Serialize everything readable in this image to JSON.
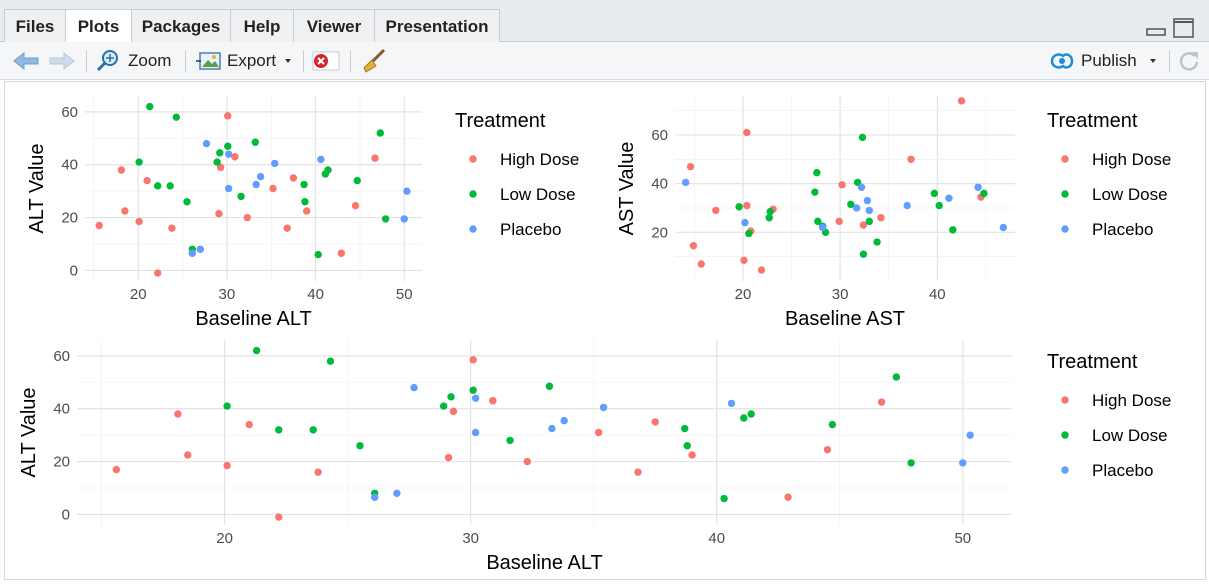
{
  "tabs": [
    {
      "label": "Files",
      "active": false
    },
    {
      "label": "Plots",
      "active": true
    },
    {
      "label": "Packages",
      "active": false
    },
    {
      "label": "Help",
      "active": false
    },
    {
      "label": "Viewer",
      "active": false
    },
    {
      "label": "Presentation",
      "active": false
    }
  ],
  "toolbar": {
    "zoom_label": "Zoom",
    "export_label": "Export",
    "publish_label": "Publish"
  },
  "colors": {
    "high_dose": "#F8766D",
    "low_dose": "#00BA38",
    "placebo": "#619CFF",
    "accent": "#1a8fd6"
  },
  "chart_data": [
    {
      "type": "scatter",
      "xlabel": "Baseline ALT",
      "ylabel": "ALT Value",
      "xlim": [
        14,
        52
      ],
      "ylim": [
        -4,
        66
      ],
      "xticks": [
        20,
        30,
        40,
        50
      ],
      "yticks": [
        0,
        20,
        40,
        60
      ],
      "legend_title": "Treatment",
      "legend": [
        "High Dose",
        "Low Dose",
        "Placebo"
      ],
      "series": [
        {
          "name": "High Dose",
          "points": [
            [
              15.6,
              17
            ],
            [
              18.1,
              38
            ],
            [
              18.5,
              22.5
            ],
            [
              20.1,
              18.5
            ],
            [
              21,
              34
            ],
            [
              22.2,
              -1
            ],
            [
              23.8,
              16
            ],
            [
              29.1,
              21.5
            ],
            [
              29.3,
              39
            ],
            [
              30.9,
              43
            ],
            [
              32.3,
              20
            ],
            [
              35.2,
              31
            ],
            [
              36.8,
              16
            ],
            [
              37.5,
              35
            ],
            [
              39,
              22.5
            ],
            [
              42.9,
              6.5
            ],
            [
              44.5,
              24.5
            ],
            [
              46.7,
              42.5
            ],
            [
              30.1,
              58.5
            ],
            [
              30.9,
              43
            ]
          ]
        },
        {
          "name": "Low Dose",
          "points": [
            [
              20.1,
              41
            ],
            [
              21.3,
              62
            ],
            [
              22.2,
              32
            ],
            [
              23.6,
              32
            ],
            [
              24.3,
              58
            ],
            [
              25.5,
              26
            ],
            [
              26.1,
              8
            ],
            [
              28.9,
              41
            ],
            [
              29.2,
              44.5
            ],
            [
              30.1,
              47
            ],
            [
              31.6,
              28
            ],
            [
              33.2,
              48.5
            ],
            [
              38.7,
              32.5
            ],
            [
              38.8,
              26
            ],
            [
              40.3,
              6
            ],
            [
              41.1,
              36.5
            ],
            [
              41.4,
              38
            ],
            [
              44.7,
              34
            ],
            [
              47.3,
              52
            ],
            [
              47.9,
              19.5
            ]
          ]
        },
        {
          "name": "Placebo",
          "points": [
            [
              26.1,
              6.5
            ],
            [
              27,
              8
            ],
            [
              27.7,
              48
            ],
            [
              30.2,
              44
            ],
            [
              30.2,
              31
            ],
            [
              33.3,
              32.5
            ],
            [
              33.8,
              35.5
            ],
            [
              35.4,
              40.5
            ],
            [
              40.6,
              42
            ],
            [
              50,
              19.5
            ],
            [
              50.3,
              30
            ]
          ]
        }
      ]
    },
    {
      "type": "scatter",
      "xlabel": "Baseline AST",
      "ylabel": "AST Value",
      "xlim": [
        13,
        48
      ],
      "ylim": [
        0,
        76
      ],
      "xticks": [
        20,
        30,
        40
      ],
      "yticks": [
        20,
        40,
        60
      ],
      "legend_title": "Treatment",
      "legend": [
        "High Dose",
        "Low Dose",
        "Placebo"
      ],
      "series": [
        {
          "name": "High Dose",
          "points": [
            [
              14.6,
              47
            ],
            [
              14.9,
              14.5
            ],
            [
              15.7,
              7
            ],
            [
              17.2,
              29
            ],
            [
              20.1,
              8.5
            ],
            [
              20.4,
              31
            ],
            [
              20.4,
              61
            ],
            [
              20.8,
              20.5
            ],
            [
              21.9,
              4.5
            ],
            [
              23.1,
              29.5
            ],
            [
              29.9,
              24.5
            ],
            [
              30.2,
              39.5
            ],
            [
              32.4,
              23
            ],
            [
              34.2,
              26
            ],
            [
              37.3,
              50
            ],
            [
              42.5,
              74
            ],
            [
              44.5,
              34.5
            ]
          ]
        },
        {
          "name": "Low Dose",
          "points": [
            [
              19.6,
              30.5
            ],
            [
              20.6,
              19.5
            ],
            [
              22.7,
              26
            ],
            [
              22.8,
              28.5
            ],
            [
              27.4,
              36.5
            ],
            [
              27.6,
              44.5
            ],
            [
              27.7,
              24.5
            ],
            [
              28.2,
              22.5
            ],
            [
              28.5,
              20
            ],
            [
              31.1,
              31.5
            ],
            [
              31.8,
              40.5
            ],
            [
              32.3,
              59
            ],
            [
              32.4,
              11
            ],
            [
              33,
              24.5
            ],
            [
              33.8,
              16
            ],
            [
              39.7,
              36
            ],
            [
              40.2,
              31
            ],
            [
              41.6,
              21
            ],
            [
              44.8,
              36
            ]
          ]
        },
        {
          "name": "Placebo",
          "points": [
            [
              14.1,
              40.5
            ],
            [
              20.2,
              24
            ],
            [
              28.2,
              22
            ],
            [
              31.7,
              30
            ],
            [
              32.2,
              38.5
            ],
            [
              32.8,
              33
            ],
            [
              33,
              29
            ],
            [
              36.9,
              31
            ],
            [
              41.2,
              34
            ],
            [
              44.2,
              38.5
            ],
            [
              46.8,
              22
            ]
          ]
        }
      ]
    },
    {
      "type": "scatter",
      "xlabel": "Baseline ALT",
      "ylabel": "ALT Value",
      "xlim": [
        14,
        52
      ],
      "ylim": [
        -4,
        66
      ],
      "xticks": [
        20,
        30,
        40,
        50
      ],
      "yticks": [
        0,
        20,
        40,
        60
      ],
      "legend_title": "Treatment",
      "legend": [
        "High Dose",
        "Low Dose",
        "Placebo"
      ],
      "series": [
        {
          "name": "High Dose",
          "points": [
            [
              15.6,
              17
            ],
            [
              18.1,
              38
            ],
            [
              18.5,
              22.5
            ],
            [
              20.1,
              18.5
            ],
            [
              21,
              34
            ],
            [
              22.2,
              -1
            ],
            [
              23.8,
              16
            ],
            [
              29.1,
              21.5
            ],
            [
              29.3,
              39
            ],
            [
              30.9,
              43
            ],
            [
              32.3,
              20
            ],
            [
              35.2,
              31
            ],
            [
              36.8,
              16
            ],
            [
              37.5,
              35
            ],
            [
              39,
              22.5
            ],
            [
              42.9,
              6.5
            ],
            [
              44.5,
              24.5
            ],
            [
              46.7,
              42.5
            ],
            [
              30.1,
              58.5
            ],
            [
              30.9,
              43
            ]
          ]
        },
        {
          "name": "Low Dose",
          "points": [
            [
              20.1,
              41
            ],
            [
              21.3,
              62
            ],
            [
              22.2,
              32
            ],
            [
              23.6,
              32
            ],
            [
              24.3,
              58
            ],
            [
              25.5,
              26
            ],
            [
              26.1,
              8
            ],
            [
              28.9,
              41
            ],
            [
              29.2,
              44.5
            ],
            [
              30.1,
              47
            ],
            [
              31.6,
              28
            ],
            [
              33.2,
              48.5
            ],
            [
              38.7,
              32.5
            ],
            [
              38.8,
              26
            ],
            [
              40.3,
              6
            ],
            [
              41.1,
              36.5
            ],
            [
              41.4,
              38
            ],
            [
              44.7,
              34
            ],
            [
              47.3,
              52
            ],
            [
              47.9,
              19.5
            ]
          ]
        },
        {
          "name": "Placebo",
          "points": [
            [
              26.1,
              6.5
            ],
            [
              27,
              8
            ],
            [
              27.7,
              48
            ],
            [
              30.2,
              44
            ],
            [
              30.2,
              31
            ],
            [
              33.3,
              32.5
            ],
            [
              33.8,
              35.5
            ],
            [
              35.4,
              40.5
            ],
            [
              40.6,
              42
            ],
            [
              50,
              19.5
            ],
            [
              50.3,
              30
            ]
          ]
        }
      ]
    }
  ]
}
